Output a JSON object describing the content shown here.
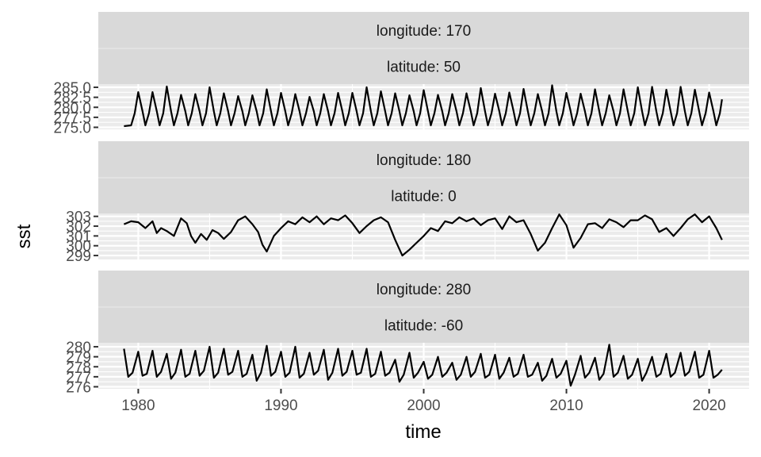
{
  "chart_data": {
    "type": "line",
    "xlabel": "time",
    "ylabel": "sst",
    "xlim": [
      1977.2,
      2022.8
    ],
    "x_ticks": [
      1980,
      1990,
      2000,
      2010,
      2020
    ],
    "x_tick_labels": [
      "1980",
      "1990",
      "2000",
      "2010",
      "2020"
    ],
    "grid": true,
    "panels": [
      {
        "strip": [
          "longitude: 170",
          "latitude: 50"
        ],
        "ylim": [
          274.5,
          285.8
        ],
        "y_ticks": [
          275.0,
          277.5,
          280.0,
          282.5,
          285.0
        ],
        "y_tick_labels": [
          "275.0",
          "277.5",
          "280.0",
          "282.5",
          "285.0"
        ],
        "x": [
          1979.0,
          1979.5,
          1979.75,
          1980.0,
          1980.3,
          1980.5,
          1980.75,
          1981.0,
          1981.3,
          1981.5,
          1981.75,
          1982.0,
          1982.3,
          1982.5,
          1982.75,
          1983.0,
          1983.3,
          1983.5,
          1983.75,
          1984.0,
          1984.3,
          1984.5,
          1984.75,
          1985.0,
          1985.3,
          1985.5,
          1985.75,
          1986.0,
          1986.3,
          1986.5,
          1986.75,
          1987.0,
          1987.3,
          1987.5,
          1987.75,
          1988.0,
          1988.3,
          1988.5,
          1988.75,
          1989.0,
          1989.3,
          1989.5,
          1989.75,
          1990.0,
          1990.3,
          1990.5,
          1990.75,
          1991.0,
          1991.3,
          1991.5,
          1991.75,
          1992.0,
          1992.3,
          1992.5,
          1992.75,
          1993.0,
          1993.3,
          1993.5,
          1993.75,
          1994.0,
          1994.3,
          1994.5,
          1994.75,
          1995.0,
          1995.3,
          1995.5,
          1995.75,
          1996.0,
          1996.3,
          1996.5,
          1996.75,
          1997.0,
          1997.3,
          1997.5,
          1997.75,
          1998.0,
          1998.3,
          1998.5,
          1998.75,
          1999.0,
          1999.3,
          1999.5,
          1999.75,
          2000.0,
          2000.3,
          2000.5,
          2000.75,
          2001.0,
          2001.3,
          2001.5,
          2001.75,
          2002.0,
          2002.3,
          2002.5,
          2002.75,
          2003.0,
          2003.3,
          2003.5,
          2003.75,
          2004.0,
          2004.3,
          2004.5,
          2004.75,
          2005.0,
          2005.3,
          2005.5,
          2005.75,
          2006.0,
          2006.3,
          2006.5,
          2006.75,
          2007.0,
          2007.3,
          2007.5,
          2007.75,
          2008.0,
          2008.3,
          2008.5,
          2008.75,
          2009.0,
          2009.3,
          2009.5,
          2009.75,
          2010.0,
          2010.3,
          2010.5,
          2010.75,
          2011.0,
          2011.3,
          2011.5,
          2011.75,
          2012.0,
          2012.3,
          2012.5,
          2012.75,
          2013.0,
          2013.3,
          2013.5,
          2013.75,
          2014.0,
          2014.3,
          2014.5,
          2014.75,
          2015.0,
          2015.3,
          2015.5,
          2015.75,
          2016.0,
          2016.3,
          2016.5,
          2016.75,
          2017.0,
          2017.3,
          2017.5,
          2017.75,
          2018.0,
          2018.3,
          2018.5,
          2018.75,
          2019.0,
          2019.3,
          2019.5,
          2019.75,
          2020.0,
          2020.3,
          2020.5,
          2020.75,
          2020.9
        ],
        "y": [
          275.3,
          275.5,
          278.5,
          283.8,
          279.0,
          275.5,
          278.5,
          283.8,
          279.0,
          275.5,
          278.5,
          285.2,
          279.0,
          275.5,
          278.5,
          283.1,
          279.0,
          275.5,
          278.5,
          283.3,
          279.0,
          275.5,
          278.5,
          285.0,
          279.0,
          275.5,
          278.5,
          283.5,
          279.0,
          275.5,
          278.5,
          282.8,
          279.0,
          275.5,
          278.5,
          283.0,
          279.0,
          275.5,
          278.5,
          284.5,
          279.0,
          275.5,
          278.5,
          283.6,
          279.0,
          275.5,
          278.5,
          283.3,
          279.0,
          275.5,
          278.5,
          282.6,
          279.0,
          275.5,
          278.5,
          283.3,
          279.0,
          275.5,
          278.5,
          283.6,
          279.0,
          275.5,
          278.5,
          283.6,
          279.0,
          275.5,
          278.5,
          285.0,
          279.0,
          275.5,
          278.5,
          284.0,
          279.0,
          275.5,
          278.5,
          283.5,
          279.0,
          275.5,
          278.5,
          283.0,
          279.0,
          275.5,
          278.5,
          284.3,
          279.0,
          275.5,
          278.5,
          283.1,
          279.0,
          275.5,
          278.5,
          283.3,
          279.0,
          275.5,
          278.5,
          283.5,
          279.0,
          275.5,
          278.5,
          284.8,
          279.0,
          275.5,
          278.5,
          283.4,
          279.0,
          275.5,
          278.5,
          283.7,
          279.0,
          275.5,
          278.5,
          284.6,
          279.0,
          275.5,
          278.5,
          283.3,
          279.0,
          275.5,
          278.5,
          285.5,
          279.0,
          275.5,
          278.5,
          283.6,
          279.0,
          275.5,
          278.5,
          283.4,
          279.0,
          275.5,
          278.5,
          284.5,
          279.0,
          275.5,
          278.5,
          283.0,
          279.0,
          275.5,
          278.5,
          284.5,
          279.0,
          275.5,
          278.5,
          285.0,
          279.0,
          275.5,
          278.5,
          285.1,
          279.0,
          275.5,
          278.5,
          284.4,
          279.0,
          275.5,
          278.5,
          285.1,
          279.0,
          275.5,
          278.5,
          284.4,
          279.0,
          275.5,
          278.5,
          283.7,
          279.0,
          275.5,
          278.5,
          282.0
        ]
      },
      {
        "strip": [
          "longitude: 180",
          "latitude: 0"
        ],
        "ylim": [
          298.6,
          303.3
        ],
        "y_ticks": [
          299,
          300,
          301,
          302,
          303
        ],
        "y_tick_labels": [
          "299",
          "300",
          "301",
          "302",
          "303"
        ],
        "x": [
          1979.0,
          1979.5,
          1980.0,
          1980.5,
          1981.0,
          1981.3,
          1981.6,
          1982.0,
          1982.5,
          1983.0,
          1983.4,
          1983.7,
          1984.0,
          1984.4,
          1984.8,
          1985.2,
          1985.6,
          1986.0,
          1986.5,
          1987.0,
          1987.5,
          1988.0,
          1988.4,
          1988.7,
          1989.0,
          1989.5,
          1990.0,
          1990.5,
          1991.0,
          1991.5,
          1992.0,
          1992.5,
          1993.0,
          1993.5,
          1994.0,
          1994.5,
          1995.0,
          1995.5,
          1996.0,
          1996.5,
          1997.0,
          1997.5,
          1998.0,
          1998.5,
          1999.0,
          1999.5,
          2000.0,
          2000.5,
          2001.0,
          2001.5,
          2002.0,
          2002.5,
          2003.0,
          2003.5,
          2004.0,
          2004.5,
          2005.0,
          2005.5,
          2006.0,
          2006.5,
          2007.0,
          2007.5,
          2008.0,
          2008.5,
          2009.0,
          2009.5,
          2010.0,
          2010.5,
          2011.0,
          2011.5,
          2012.0,
          2012.5,
          2013.0,
          2013.5,
          2014.0,
          2014.5,
          2015.0,
          2015.5,
          2016.0,
          2016.5,
          2017.0,
          2017.5,
          2018.0,
          2018.5,
          2019.0,
          2019.5,
          2020.0,
          2020.5,
          2020.9
        ],
        "y": [
          302.2,
          302.5,
          302.4,
          301.8,
          302.5,
          301.3,
          301.8,
          301.5,
          301.0,
          302.8,
          302.3,
          301.0,
          300.3,
          301.2,
          300.6,
          301.6,
          301.3,
          300.7,
          301.4,
          302.6,
          303.0,
          302.2,
          301.4,
          300.1,
          299.4,
          301.0,
          301.8,
          302.5,
          302.2,
          302.9,
          302.4,
          303.0,
          302.2,
          302.8,
          302.6,
          303.1,
          302.3,
          301.3,
          302.0,
          302.6,
          302.9,
          302.4,
          300.6,
          299.0,
          299.6,
          300.3,
          301.0,
          301.8,
          301.5,
          302.5,
          302.3,
          302.9,
          302.5,
          302.8,
          302.1,
          302.6,
          302.8,
          301.7,
          303.0,
          302.4,
          302.6,
          301.2,
          299.5,
          300.3,
          301.8,
          303.2,
          302.1,
          299.8,
          300.8,
          302.2,
          302.3,
          301.8,
          302.7,
          302.4,
          301.9,
          302.6,
          302.6,
          303.1,
          302.7,
          301.4,
          301.8,
          301.0,
          301.8,
          302.7,
          303.2,
          302.4,
          303.0,
          301.8,
          300.6
        ]
      },
      {
        "strip": [
          "longitude: 280",
          "latitude: -60"
        ],
        "ylim": [
          275.8,
          280.4
        ],
        "y_ticks": [
          276,
          277,
          278,
          279,
          280
        ],
        "y_tick_labels": [
          "276",
          "277",
          "278",
          "279",
          "280"
        ],
        "x": [
          1979.0,
          1979.3,
          1979.6,
          1980.0,
          1980.3,
          1980.6,
          1981.0,
          1981.3,
          1981.6,
          1982.0,
          1982.3,
          1982.6,
          1983.0,
          1983.3,
          1983.6,
          1984.0,
          1984.3,
          1984.6,
          1985.0,
          1985.3,
          1985.6,
          1986.0,
          1986.3,
          1986.6,
          1987.0,
          1987.3,
          1987.6,
          1988.0,
          1988.3,
          1988.6,
          1989.0,
          1989.3,
          1989.6,
          1990.0,
          1990.3,
          1990.6,
          1991.0,
          1991.3,
          1991.6,
          1992.0,
          1992.3,
          1992.6,
          1993.0,
          1993.3,
          1993.6,
          1994.0,
          1994.3,
          1994.6,
          1995.0,
          1995.3,
          1995.6,
          1996.0,
          1996.3,
          1996.6,
          1997.0,
          1997.3,
          1997.6,
          1998.0,
          1998.3,
          1998.6,
          1999.0,
          1999.3,
          1999.6,
          2000.0,
          2000.3,
          2000.6,
          2001.0,
          2001.3,
          2001.6,
          2002.0,
          2002.3,
          2002.6,
          2003.0,
          2003.3,
          2003.6,
          2004.0,
          2004.3,
          2004.6,
          2005.0,
          2005.3,
          2005.6,
          2006.0,
          2006.3,
          2006.6,
          2007.0,
          2007.3,
          2007.6,
          2008.0,
          2008.3,
          2008.6,
          2009.0,
          2009.3,
          2009.6,
          2010.0,
          2010.3,
          2010.6,
          2011.0,
          2011.3,
          2011.6,
          2012.0,
          2012.3,
          2012.6,
          2013.0,
          2013.3,
          2013.6,
          2014.0,
          2014.3,
          2014.6,
          2015.0,
          2015.3,
          2015.6,
          2016.0,
          2016.3,
          2016.6,
          2017.0,
          2017.3,
          2017.6,
          2018.0,
          2018.3,
          2018.6,
          2019.0,
          2019.3,
          2019.6,
          2020.0,
          2020.3,
          2020.6,
          2020.9
        ],
        "y": [
          279.8,
          277.0,
          277.4,
          279.5,
          277.1,
          277.3,
          279.6,
          277.0,
          277.5,
          279.3,
          276.8,
          277.4,
          279.7,
          277.0,
          277.3,
          279.6,
          277.1,
          277.6,
          280.0,
          276.9,
          277.4,
          279.8,
          277.2,
          277.5,
          279.6,
          277.0,
          277.3,
          279.2,
          276.6,
          277.4,
          280.1,
          277.1,
          277.5,
          279.5,
          277.0,
          277.4,
          280.0,
          276.9,
          277.3,
          279.4,
          277.2,
          277.6,
          279.7,
          276.7,
          277.4,
          279.8,
          277.1,
          277.5,
          279.6,
          277.2,
          277.4,
          279.8,
          277.0,
          277.3,
          279.5,
          277.1,
          277.4,
          278.7,
          276.5,
          277.2,
          279.4,
          276.9,
          277.4,
          278.5,
          276.8,
          277.2,
          279.0,
          277.0,
          277.4,
          278.4,
          276.7,
          277.2,
          279.0,
          277.0,
          277.5,
          279.3,
          276.9,
          277.2,
          279.2,
          276.8,
          277.4,
          278.9,
          277.0,
          277.3,
          279.2,
          277.0,
          277.2,
          278.4,
          276.6,
          277.1,
          278.8,
          276.9,
          277.3,
          278.6,
          276.1,
          277.2,
          279.1,
          276.9,
          277.4,
          278.9,
          276.7,
          277.3,
          280.2,
          277.0,
          277.4,
          279.1,
          276.8,
          277.2,
          278.8,
          276.6,
          277.4,
          279.0,
          277.0,
          277.3,
          279.3,
          277.0,
          277.4,
          279.4,
          277.1,
          277.5,
          279.5,
          276.9,
          277.2,
          279.6,
          276.9,
          277.2,
          277.7
        ]
      }
    ]
  }
}
